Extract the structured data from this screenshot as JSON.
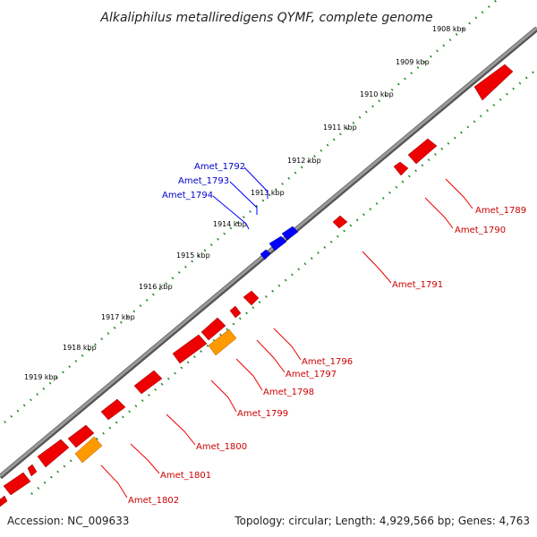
{
  "title": "Alkaliphilus metalliredigens QYMF, complete genome",
  "footer": {
    "accession": "Accession: NC_009633",
    "topology": "Topology: circular; Length: 4,929,566 bp; Genes: 4,763"
  },
  "kbp_ticks": [
    {
      "label": "1908 kbp"
    },
    {
      "label": "1909 kbp"
    },
    {
      "label": "1910 kbp"
    },
    {
      "label": "1911 kbp"
    },
    {
      "label": "1912 kbp"
    },
    {
      "label": "1913 kbp"
    },
    {
      "label": "1914 kbp"
    },
    {
      "label": "1915 kbp"
    },
    {
      "label": "1916 kbp"
    },
    {
      "label": "1917 kbp"
    },
    {
      "label": "1918 kbp"
    },
    {
      "label": "1919 kbp"
    }
  ],
  "genes_outer": [
    {
      "label": "Amet_1792",
      "color": "#0000cc"
    },
    {
      "label": "Amet_1793",
      "color": "#0000cc"
    },
    {
      "label": "Amet_1794",
      "color": "#0000cc"
    }
  ],
  "genes_inner": [
    {
      "label": "Amet_1789",
      "color": "#cc0000"
    },
    {
      "label": "Amet_1790",
      "color": "#cc0000"
    },
    {
      "label": "Amet_1791",
      "color": "#cc0000"
    },
    {
      "label": "Amet_1796",
      "color": "#cc0000"
    },
    {
      "label": "Amet_1797",
      "color": "#cc0000"
    },
    {
      "label": "Amet_1798",
      "color": "#cc0000"
    },
    {
      "label": "Amet_1799",
      "color": "#cc0000"
    },
    {
      "label": "Amet_1800",
      "color": "#cc0000"
    },
    {
      "label": "Amet_1801",
      "color": "#cc0000"
    },
    {
      "label": "Amet_1802",
      "color": "#cc0000"
    }
  ],
  "colors": {
    "forward_gene": "#0000ff",
    "reverse_gene": "#ff0000",
    "rna_gene": "#ff9900",
    "backbone": "#888888",
    "tick_dots": "#228822"
  }
}
